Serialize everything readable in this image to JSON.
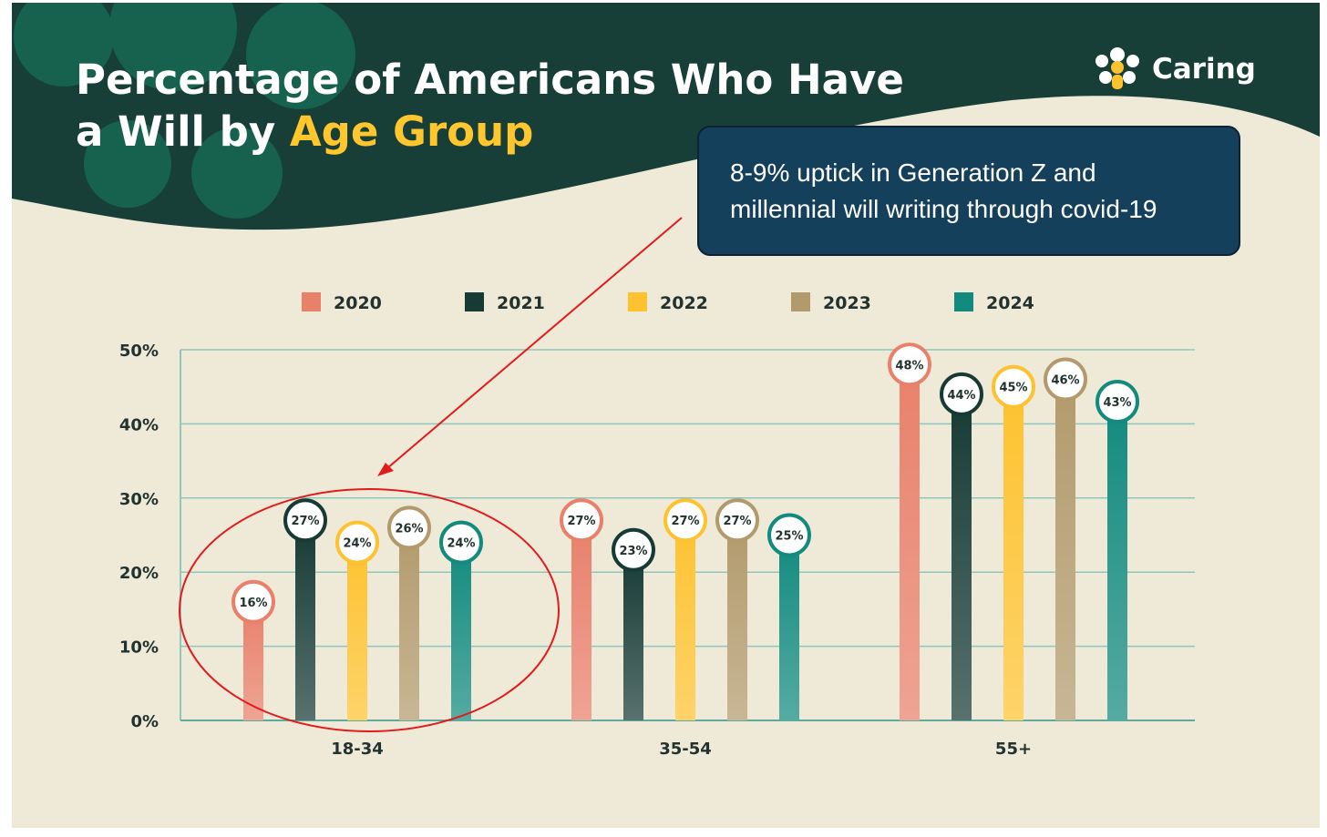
{
  "header": {
    "title_line1": "Percentage of Americans Who Have",
    "title_line2_prefix": "a Will by ",
    "title_line2_highlight": "Age Group",
    "brand": "Caring"
  },
  "callout": {
    "line1": "8-9% uptick in Generation Z and",
    "line2": "millennial will writing through covid-19"
  },
  "colors": {
    "background": "#efe9d8",
    "header": "#173f38",
    "header_accent": "#17614f",
    "title_highlight": "#ffc62e",
    "gridline": "#8fc7bd",
    "annotation": "#e11b1b"
  },
  "chart_data": {
    "type": "bar",
    "title": "Percentage of Americans Who Have a Will by Age Group",
    "xlabel": "",
    "ylabel": "",
    "ylim": [
      0,
      50
    ],
    "yticks": [
      "0%",
      "10%",
      "20%",
      "30%",
      "40%",
      "50%"
    ],
    "grid": true,
    "legend_position": "top",
    "categories": [
      "18-34",
      "35-54",
      "55+"
    ],
    "series": [
      {
        "name": "2020",
        "color": "#e8806a",
        "values": [
          16,
          27,
          48
        ],
        "labels": [
          "16%",
          "27%",
          "48%"
        ]
      },
      {
        "name": "2021",
        "color": "#173a35",
        "values": [
          27,
          23,
          44
        ],
        "labels": [
          "27%",
          "23%",
          "44%"
        ]
      },
      {
        "name": "2022",
        "color": "#fdc22f",
        "values": [
          24,
          27,
          45
        ],
        "labels": [
          "24%",
          "27%",
          "45%"
        ]
      },
      {
        "name": "2023",
        "color": "#b29a6c",
        "values": [
          26,
          27,
          46
        ],
        "labels": [
          "26%",
          "27%",
          "46%"
        ]
      },
      {
        "name": "2024",
        "color": "#138a7e",
        "values": [
          24,
          25,
          43
        ],
        "labels": [
          "24%",
          "25%",
          "43%"
        ]
      }
    ]
  }
}
